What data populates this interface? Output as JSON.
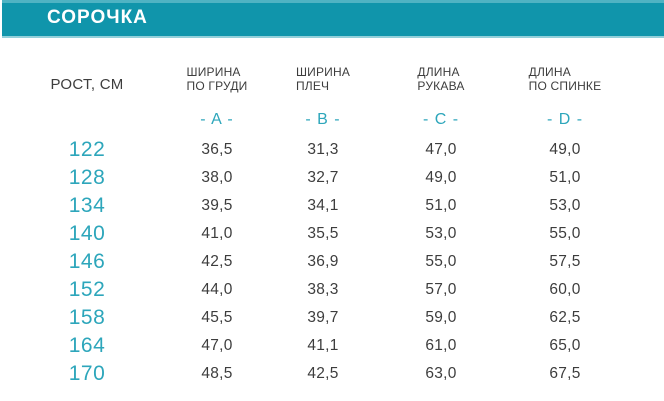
{
  "header": {
    "title": "СОРОЧКА"
  },
  "table": {
    "row_header": "РОСТ, СМ",
    "columns": [
      {
        "line1": "ШИРИНА",
        "line2": "ПО ГРУДИ",
        "letter": "- A -"
      },
      {
        "line1": "ШИРИНА",
        "line2": "ПЛЕЧ",
        "letter": "- B -"
      },
      {
        "line1": "ДЛИНА",
        "line2": "РУКАВА",
        "letter": "- C -"
      },
      {
        "line1": "ДЛИНА",
        "line2": "ПО СПИНКЕ",
        "letter": "- D -"
      }
    ],
    "rows": [
      {
        "height": "122",
        "values": [
          "36,5",
          "31,3",
          "47,0",
          "49,0"
        ]
      },
      {
        "height": "128",
        "values": [
          "38,0",
          "32,7",
          "49,0",
          "51,0"
        ]
      },
      {
        "height": "134",
        "values": [
          "39,5",
          "34,1",
          "51,0",
          "53,0"
        ]
      },
      {
        "height": "140",
        "values": [
          "41,0",
          "35,5",
          "53,0",
          "55,0"
        ]
      },
      {
        "height": "146",
        "values": [
          "42,5",
          "36,9",
          "55,0",
          "57,5"
        ]
      },
      {
        "height": "152",
        "values": [
          "44,0",
          "38,3",
          "57,0",
          "60,0"
        ]
      },
      {
        "height": "158",
        "values": [
          "45,5",
          "39,7",
          "59,0",
          "62,5"
        ]
      },
      {
        "height": "164",
        "values": [
          "47,0",
          "41,1",
          "61,0",
          "65,0"
        ]
      },
      {
        "height": "170",
        "values": [
          "48,5",
          "42,5",
          "63,0",
          "67,5"
        ]
      }
    ]
  },
  "colors": {
    "bar": "#1095ab",
    "bar-top": "#4fb3c3",
    "bar-bottom": "#93d0da",
    "accent": "#2da6bb",
    "text": "#3d3d3d",
    "bg": "#ffffff"
  }
}
